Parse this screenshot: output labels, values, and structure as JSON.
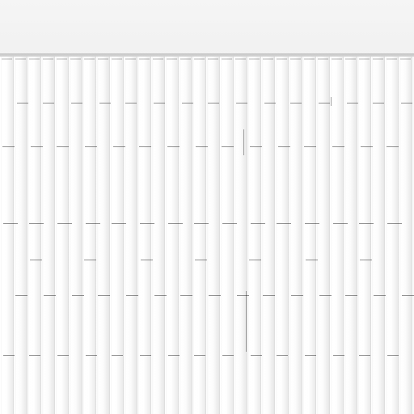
{
  "scene": {
    "type": "white vertical slatted panel wall"
  }
}
